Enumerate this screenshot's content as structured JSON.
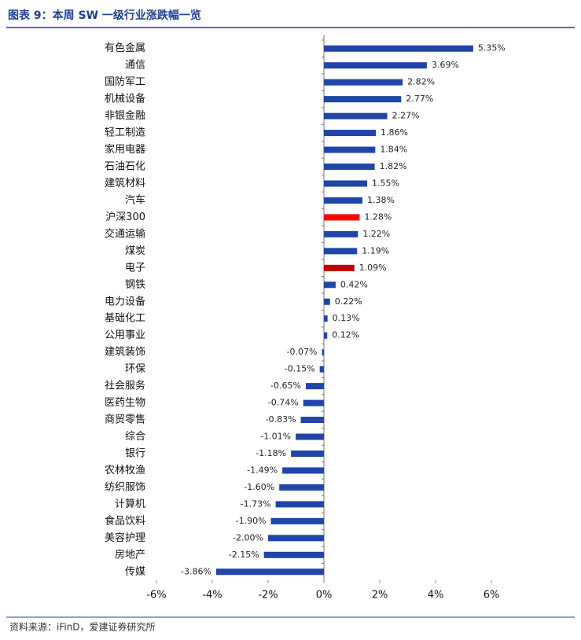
{
  "chart_data": {
    "type": "bar",
    "orientation": "horizontal",
    "title": "图表 9：本周 SW 一级行业涨跌幅一览",
    "source": "资料来源：iFinD，爱建证券研究所",
    "categories": [
      "有色金属",
      "通信",
      "国防军工",
      "机械设备",
      "非银金融",
      "轻工制造",
      "家用电器",
      "石油石化",
      "建筑材料",
      "汽车",
      "沪深300",
      "交通运输",
      "煤炭",
      "电子",
      "钢铁",
      "电力设备",
      "基础化工",
      "公用事业",
      "建筑装饰",
      "环保",
      "社会服务",
      "医药生物",
      "商贸零售",
      "综合",
      "银行",
      "农林牧渔",
      "纺织服饰",
      "计算机",
      "食品饮料",
      "美容护理",
      "房地产",
      "传媒"
    ],
    "values": [
      5.35,
      3.69,
      2.82,
      2.77,
      2.27,
      1.86,
      1.84,
      1.82,
      1.55,
      1.38,
      1.28,
      1.22,
      1.19,
      1.09,
      0.42,
      0.22,
      0.13,
      0.12,
      -0.07,
      -0.15,
      -0.65,
      -0.74,
      -0.83,
      -1.01,
      -1.18,
      -1.49,
      -1.6,
      -1.73,
      -1.9,
      -2.0,
      -2.15,
      -3.86
    ],
    "value_labels": [
      "5.35%",
      "3.69%",
      "2.82%",
      "2.77%",
      "2.27%",
      "1.86%",
      "1.84%",
      "1.82%",
      "1.55%",
      "1.38%",
      "1.28%",
      "1.22%",
      "1.19%",
      "1.09%",
      "0.42%",
      "0.22%",
      "0.13%",
      "0.12%",
      "-0.07%",
      "-0.15%",
      "-0.65%",
      "-0.74%",
      "-0.83%",
      "-1.01%",
      "-1.18%",
      "-1.49%",
      "-1.60%",
      "-1.73%",
      "-1.90%",
      "-2.00%",
      "-2.15%",
      "-3.86%"
    ],
    "colors": [
      "#1f45a8",
      "#1f45a8",
      "#1f45a8",
      "#1f45a8",
      "#1f45a8",
      "#1f45a8",
      "#1f45a8",
      "#1f45a8",
      "#1f45a8",
      "#1f45a8",
      "#ff0000",
      "#1f45a8",
      "#1f45a8",
      "#c00000",
      "#1f45a8",
      "#1f45a8",
      "#1f45a8",
      "#1f45a8",
      "#1f45a8",
      "#1f45a8",
      "#1f45a8",
      "#1f45a8",
      "#1f45a8",
      "#1f45a8",
      "#1f45a8",
      "#1f45a8",
      "#1f45a8",
      "#1f45a8",
      "#1f45a8",
      "#1f45a8",
      "#1f45a8",
      "#1f45a8"
    ],
    "xlim": [
      -6,
      6
    ],
    "xticks": [
      {
        "value": -6,
        "label": "-6%"
      },
      {
        "value": -4,
        "label": "-4%"
      },
      {
        "value": -2,
        "label": "-2%"
      },
      {
        "value": 0,
        "label": "0%"
      },
      {
        "value": 2,
        "label": "2%"
      },
      {
        "value": 4,
        "label": "4%"
      },
      {
        "value": 6,
        "label": "6%"
      }
    ]
  }
}
